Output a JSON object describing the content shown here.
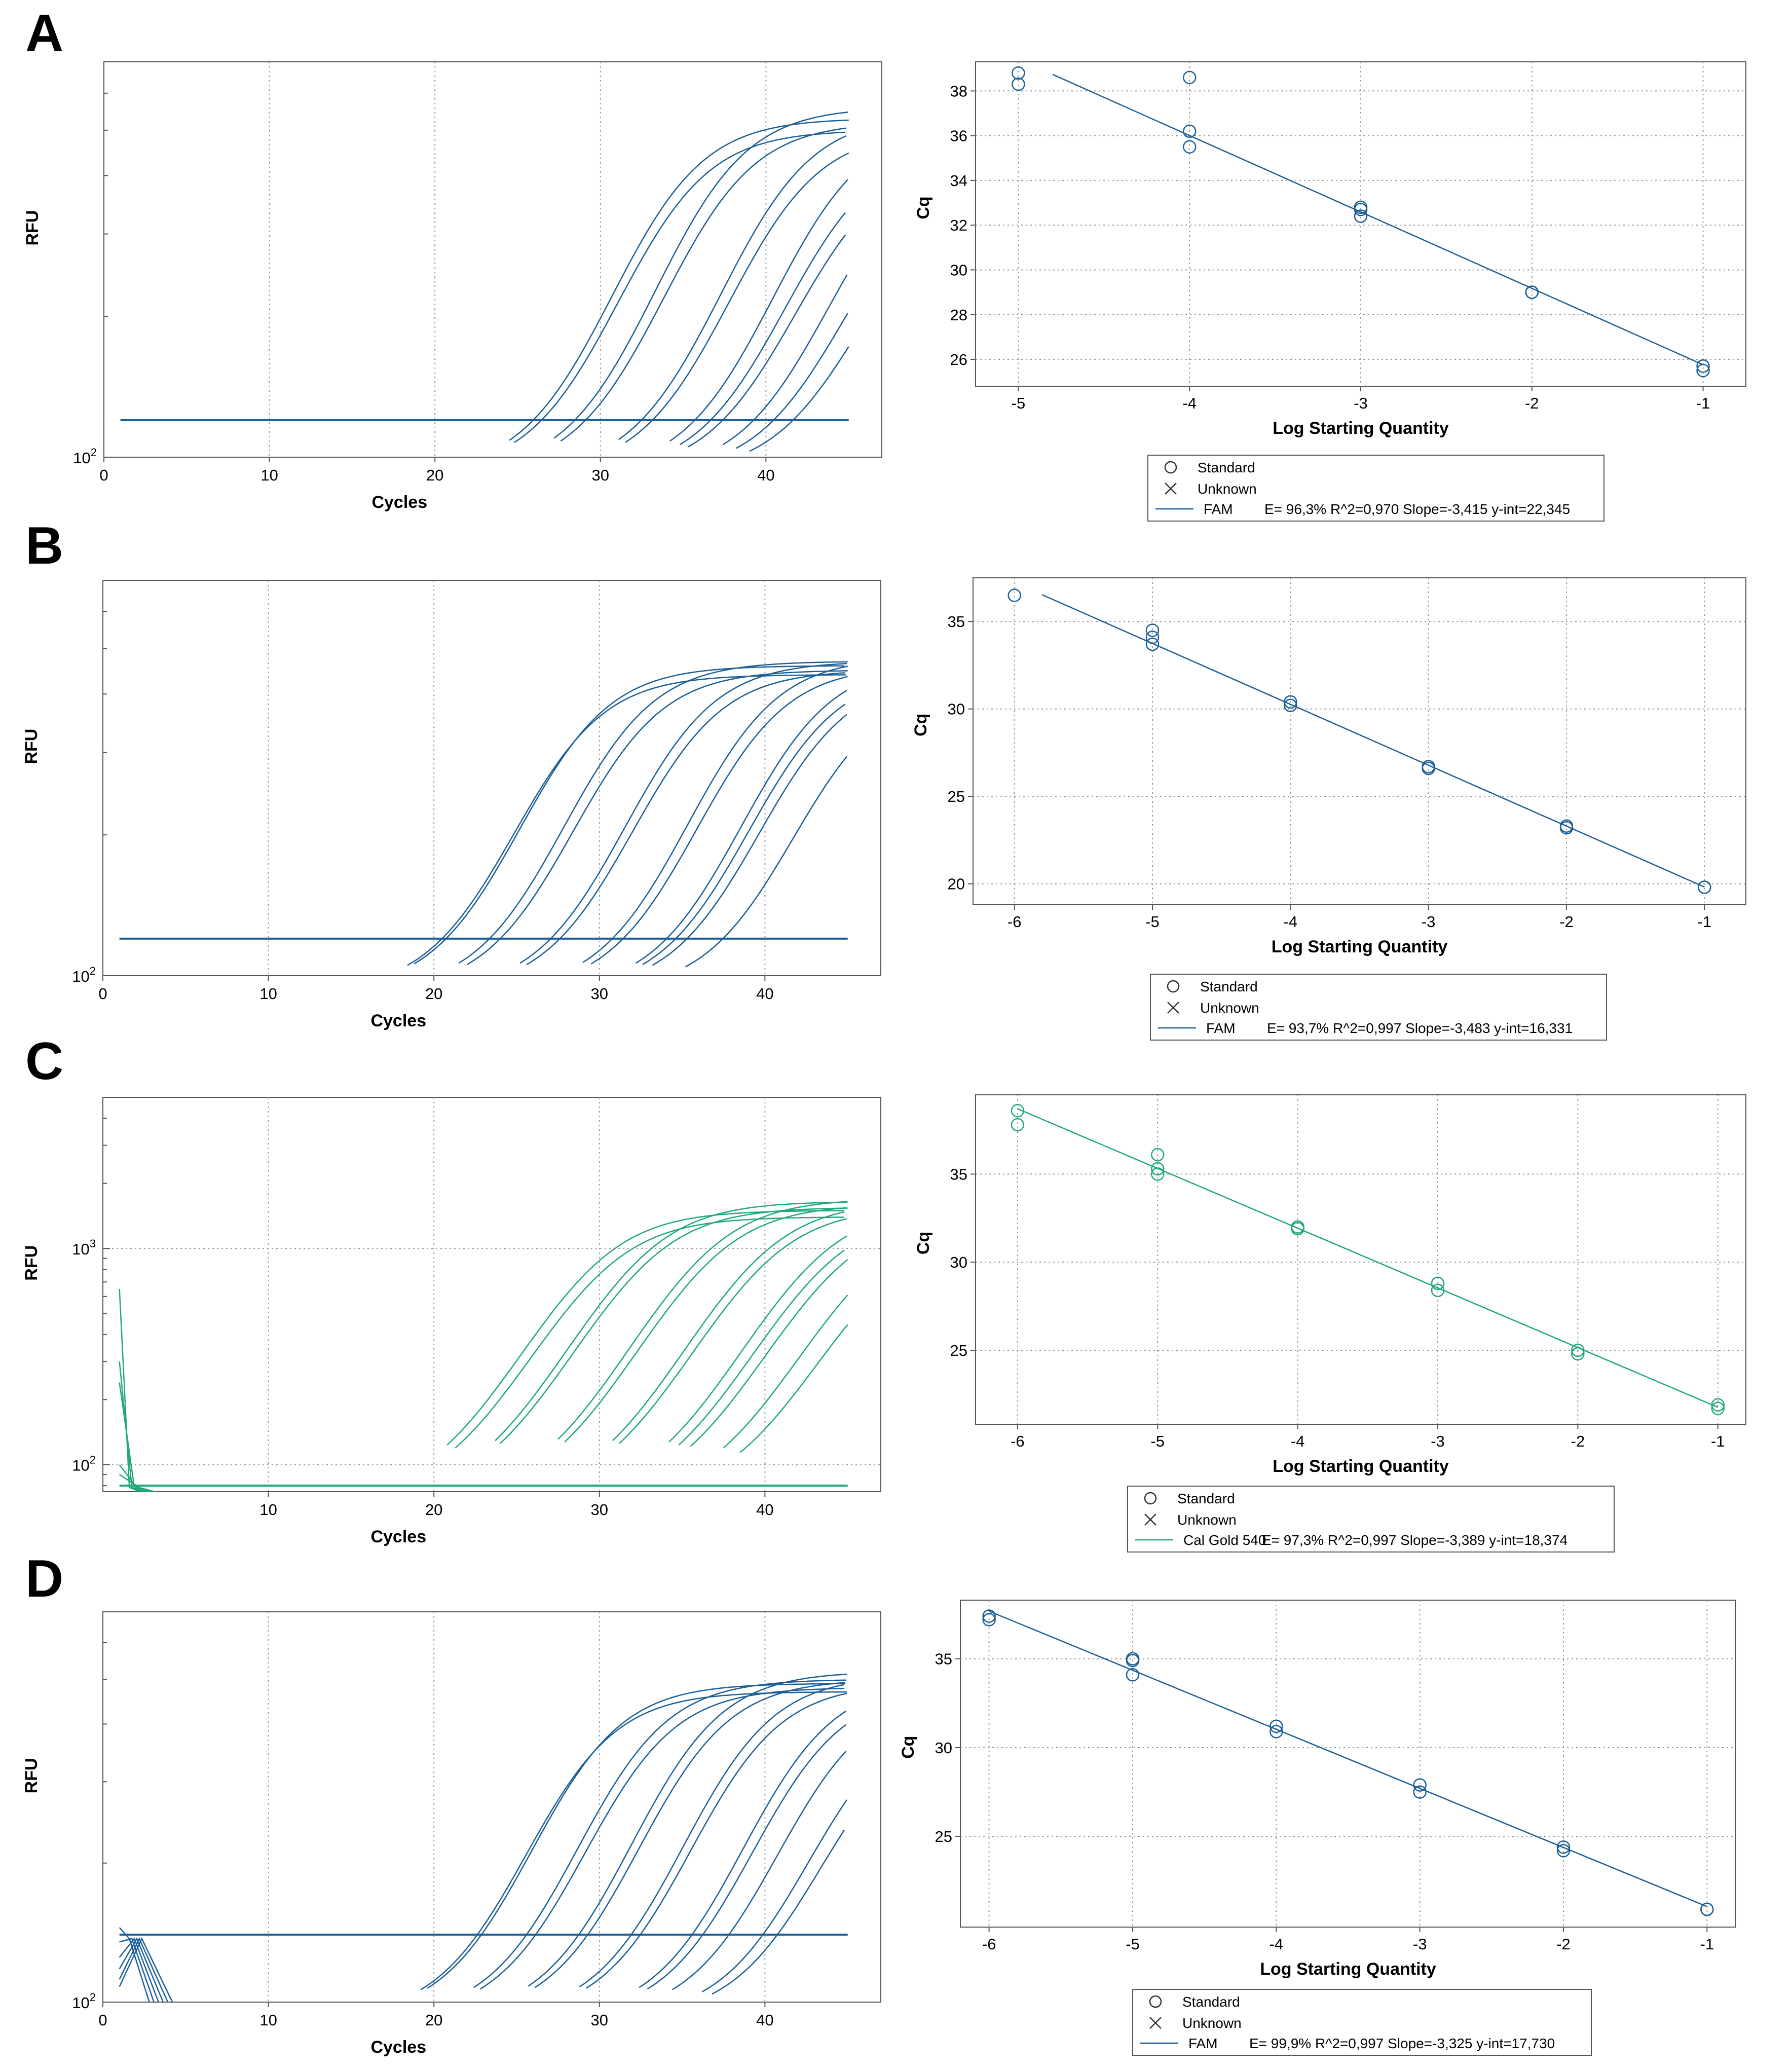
{
  "panels": [
    {
      "letter": "A",
      "color": "#1b5e96",
      "amplification": {
        "ylabel": "RFU",
        "xlabel": "Cycles",
        "xticks": [
          "0",
          "10",
          "20",
          "30",
          "40"
        ],
        "yticks": [
          {
            "label_base": "10",
            "label_exp": "2",
            "value": 100
          }
        ],
        "ylim": [
          100,
          700
        ],
        "xlim": [
          0,
          47
        ],
        "threshold": 120,
        "curves": [
          {
            "ct": 25.5,
            "plateau": 530
          },
          {
            "ct": 25.8,
            "plateau": 500
          },
          {
            "ct": 28.2,
            "plateau": 560
          },
          {
            "ct": 28.6,
            "plateau": 520
          },
          {
            "ct": 32.1,
            "plateau": 540
          },
          {
            "ct": 32.5,
            "plateau": 500
          },
          {
            "ct": 35.2,
            "plateau": 520
          },
          {
            "ct": 35.8,
            "plateau": 470
          },
          {
            "ct": 36.3,
            "plateau": 440
          },
          {
            "ct": 38.4,
            "plateau": 470
          },
          {
            "ct": 39.2,
            "plateau": 420
          },
          {
            "ct": 40.0,
            "plateau": 380
          }
        ]
      },
      "standard": {
        "type": "scatter",
        "xlabel": "Log Starting Quantity",
        "ylabel": "Cq",
        "xlim": [
          -5.25,
          -0.75
        ],
        "ylim": [
          24.8,
          39.3
        ],
        "xticks": [
          "-5",
          "-4",
          "-3",
          "-2",
          "-1"
        ],
        "yticks": [
          "26",
          "28",
          "30",
          "32",
          "34",
          "36",
          "38"
        ],
        "points": [
          [
            -5,
            38.8
          ],
          [
            -5,
            38.3
          ],
          [
            -4,
            38.6
          ],
          [
            -4,
            36.2
          ],
          [
            -4,
            35.5
          ],
          [
            -3,
            32.8
          ],
          [
            -3,
            32.7
          ],
          [
            -3,
            32.4
          ],
          [
            -2,
            29.0
          ],
          [
            -2,
            29.0
          ],
          [
            -1,
            25.7
          ],
          [
            -1,
            25.5
          ]
        ],
        "fit_x": [
          -4.8,
          -1.0
        ],
        "slope": -3.415,
        "intercept": 22.345,
        "legend": {
          "standard": "Standard",
          "unknown": "Unknown",
          "series": "FAM",
          "stats": "E= 96,3% R^2=0,970 Slope=-3,415 y-int=22,345"
        }
      }
    },
    {
      "letter": "B",
      "color": "#1b5e96",
      "amplification": {
        "ylabel": "RFU",
        "xlabel": "Cycles",
        "xticks": [
          "0",
          "10",
          "20",
          "30",
          "40"
        ],
        "yticks": [
          {
            "label_base": "10",
            "label_exp": "2",
            "value": 100
          }
        ],
        "ylim": [
          100,
          700
        ],
        "xlim": [
          0,
          47
        ],
        "threshold": 120,
        "curves": [
          {
            "ct": 19.4,
            "plateau": 440
          },
          {
            "ct": 19.8,
            "plateau": 460
          },
          {
            "ct": 22.5,
            "plateau": 470
          },
          {
            "ct": 23.0,
            "plateau": 450
          },
          {
            "ct": 26.2,
            "plateau": 470
          },
          {
            "ct": 26.6,
            "plateau": 450
          },
          {
            "ct": 30.0,
            "plateau": 480
          },
          {
            "ct": 30.5,
            "plateau": 460
          },
          {
            "ct": 33.2,
            "plateau": 470
          },
          {
            "ct": 33.6,
            "plateau": 450
          },
          {
            "ct": 34.2,
            "plateau": 440
          },
          {
            "ct": 36.2,
            "plateau": 420
          }
        ]
      },
      "standard": {
        "type": "scatter",
        "xlabel": "Log Starting Quantity",
        "ylabel": "Cq",
        "xlim": [
          -6.3,
          -0.7
        ],
        "ylim": [
          18.8,
          37.5
        ],
        "xticks": [
          "-6",
          "-5",
          "-4",
          "-3",
          "-2",
          "-1"
        ],
        "yticks": [
          "20",
          "25",
          "30",
          "35"
        ],
        "points": [
          [
            -6,
            36.5
          ],
          [
            -5,
            34.5
          ],
          [
            -5,
            34.1
          ],
          [
            -5,
            33.7
          ],
          [
            -4,
            30.4
          ],
          [
            -4,
            30.2
          ],
          [
            -3,
            26.7
          ],
          [
            -3,
            26.6
          ],
          [
            -2,
            23.3
          ],
          [
            -2,
            23.2
          ],
          [
            -1,
            19.8
          ],
          [
            -1,
            19.8
          ]
        ],
        "fit_x": [
          -5.8,
          -1.0
        ],
        "slope": -3.483,
        "intercept": 16.331,
        "legend": {
          "standard": "Standard",
          "unknown": "Unknown",
          "series": "FAM",
          "stats": "E= 93,7% R^2=0,997 Slope=-3,483 y-int=16,331"
        }
      }
    },
    {
      "letter": "C",
      "color": "#20a878",
      "amplification": {
        "ylabel": "RFU",
        "xlabel": "Cycles",
        "xticks": [
          "10",
          "20",
          "30",
          "40"
        ],
        "yticks": [
          {
            "label_base": "10",
            "label_exp": "3",
            "value": 1000
          },
          {
            "label_base": "10",
            "label_exp": "2",
            "value": 100
          }
        ],
        "ylim": [
          75,
          5000
        ],
        "xlim": [
          0,
          47
        ],
        "threshold": 80,
        "spikes": [
          650,
          300,
          240,
          100,
          90
        ],
        "curves": [
          {
            "ct": 21.8,
            "plateau": 1500
          },
          {
            "ct": 22.3,
            "plateau": 1400
          },
          {
            "ct": 24.7,
            "plateau": 1650
          },
          {
            "ct": 25.0,
            "plateau": 1550
          },
          {
            "ct": 28.5,
            "plateau": 1700
          },
          {
            "ct": 28.9,
            "plateau": 1600
          },
          {
            "ct": 31.8,
            "plateau": 1650
          },
          {
            "ct": 32.2,
            "plateau": 1550
          },
          {
            "ct": 35.2,
            "plateau": 1600
          },
          {
            "ct": 35.8,
            "plateau": 1500
          },
          {
            "ct": 36.5,
            "plateau": 1450
          },
          {
            "ct": 38.5,
            "plateau": 1400
          },
          {
            "ct": 39.5,
            "plateau": 1250
          }
        ]
      },
      "standard": {
        "type": "scatter",
        "xlabel": "Log Starting Quantity",
        "ylabel": "Cq",
        "xlim": [
          -6.3,
          -0.8
        ],
        "ylim": [
          20.8,
          39.5
        ],
        "xticks": [
          "-6",
          "-5",
          "-4",
          "-3",
          "-2",
          "-1"
        ],
        "yticks": [
          "25",
          "30",
          "35"
        ],
        "points": [
          [
            -6,
            38.6
          ],
          [
            -6,
            37.8
          ],
          [
            -5,
            36.1
          ],
          [
            -5,
            35.3
          ],
          [
            -5,
            35.0
          ],
          [
            -4,
            32.0
          ],
          [
            -4,
            31.9
          ],
          [
            -3,
            28.8
          ],
          [
            -3,
            28.4
          ],
          [
            -2,
            25.0
          ],
          [
            -2,
            24.8
          ],
          [
            -1,
            21.9
          ],
          [
            -1,
            21.7
          ]
        ],
        "fit_x": [
          -6.0,
          -1.0
        ],
        "slope": -3.389,
        "intercept": 18.374,
        "legend": {
          "standard": "Standard",
          "unknown": "Unknown",
          "series": "Cal Gold 540",
          "stats": "E= 97,3% R^2=0,997 Slope=-3,389 y-int=18,374"
        }
      }
    },
    {
      "letter": "D",
      "color": "#1b5e96",
      "amplification": {
        "ylabel": "RFU",
        "xlabel": "Cycles",
        "xticks": [
          "0",
          "10",
          "20",
          "30",
          "40"
        ],
        "yticks": [
          {
            "label_base": "10",
            "label_exp": "2",
            "value": 100
          }
        ],
        "ylim": [
          100,
          700
        ],
        "xlim": [
          0,
          47
        ],
        "threshold": 140,
        "spikes": [
          145,
          135,
          125,
          118,
          112,
          108
        ],
        "curves": [
          {
            "ct": 20.2,
            "plateau": 470
          },
          {
            "ct": 20.6,
            "plateau": 490
          },
          {
            "ct": 23.4,
            "plateau": 500
          },
          {
            "ct": 23.8,
            "plateau": 480
          },
          {
            "ct": 26.7,
            "plateau": 520
          },
          {
            "ct": 27.1,
            "plateau": 500
          },
          {
            "ct": 29.8,
            "plateau": 510
          },
          {
            "ct": 30.2,
            "plateau": 490
          },
          {
            "ct": 33.4,
            "plateau": 500
          },
          {
            "ct": 33.9,
            "plateau": 480
          },
          {
            "ct": 35.4,
            "plateau": 470
          },
          {
            "ct": 37.2,
            "plateau": 440
          },
          {
            "ct": 37.8,
            "plateau": 410
          }
        ]
      },
      "standard": {
        "type": "scatter",
        "xlabel": "Log Starting Quantity",
        "ylabel": "Cq",
        "xlim": [
          -6.2,
          -0.8
        ],
        "ylim": [
          19.9,
          38.3
        ],
        "xticks": [
          "-6",
          "-5",
          "-4",
          "-3",
          "-2",
          "-1"
        ],
        "yticks": [
          "25",
          "30",
          "35"
        ],
        "points": [
          [
            -6,
            37.4
          ],
          [
            -6,
            37.2
          ],
          [
            -5,
            35.0
          ],
          [
            -5,
            34.9
          ],
          [
            -5,
            34.1
          ],
          [
            -4,
            31.2
          ],
          [
            -4,
            30.9
          ],
          [
            -3,
            27.9
          ],
          [
            -3,
            27.5
          ],
          [
            -2,
            24.4
          ],
          [
            -2,
            24.2
          ],
          [
            -1,
            20.9
          ],
          [
            -1,
            20.9
          ]
        ],
        "fit_x": [
          -6.0,
          -1.0
        ],
        "slope": -3.325,
        "intercept": 17.73,
        "legend": {
          "standard": "Standard",
          "unknown": "Unknown",
          "series": "FAM",
          "stats": "E= 99,9% R^2=0,997 Slope=-3,325 y-int=17,730"
        }
      }
    }
  ]
}
